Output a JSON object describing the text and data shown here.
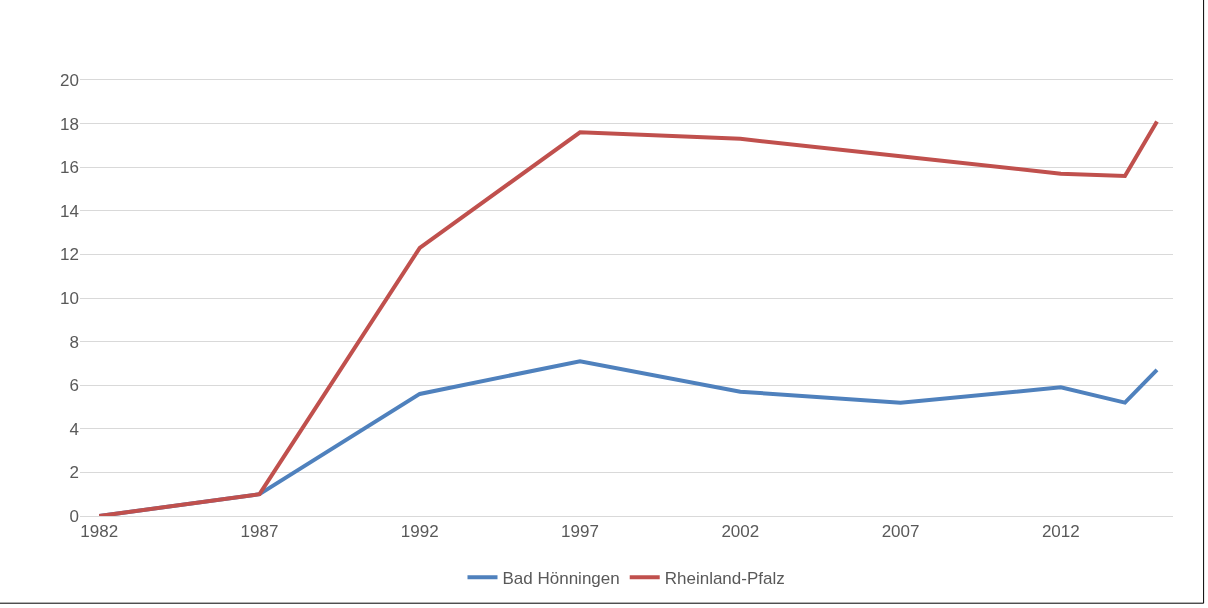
{
  "chart_data": {
    "type": "line",
    "x": [
      1982,
      1987,
      1992,
      1997,
      2002,
      2007,
      2012,
      2014,
      2015
    ],
    "series": [
      {
        "name": "Bad Hönningen",
        "color": "#4f81bd",
        "values": [
          0,
          1.0,
          5.6,
          7.1,
          5.7,
          5.2,
          5.9,
          5.2,
          6.7
        ]
      },
      {
        "name": "Rheinland-Pfalz",
        "color": "#c0504d",
        "values": [
          0,
          1.0,
          12.3,
          17.6,
          17.3,
          16.5,
          15.7,
          15.6,
          18.1
        ]
      }
    ],
    "xlim": [
      1981.4,
      2015.5
    ],
    "xticks": [
      1982,
      1987,
      1992,
      1997,
      2002,
      2007,
      2012
    ],
    "ylim": [
      0,
      20
    ],
    "yticks": [
      0,
      2,
      4,
      6,
      8,
      10,
      12,
      14,
      16,
      18,
      20
    ],
    "grid": "y",
    "legend": "bottom",
    "marker": "none",
    "line_style": "solid"
  }
}
